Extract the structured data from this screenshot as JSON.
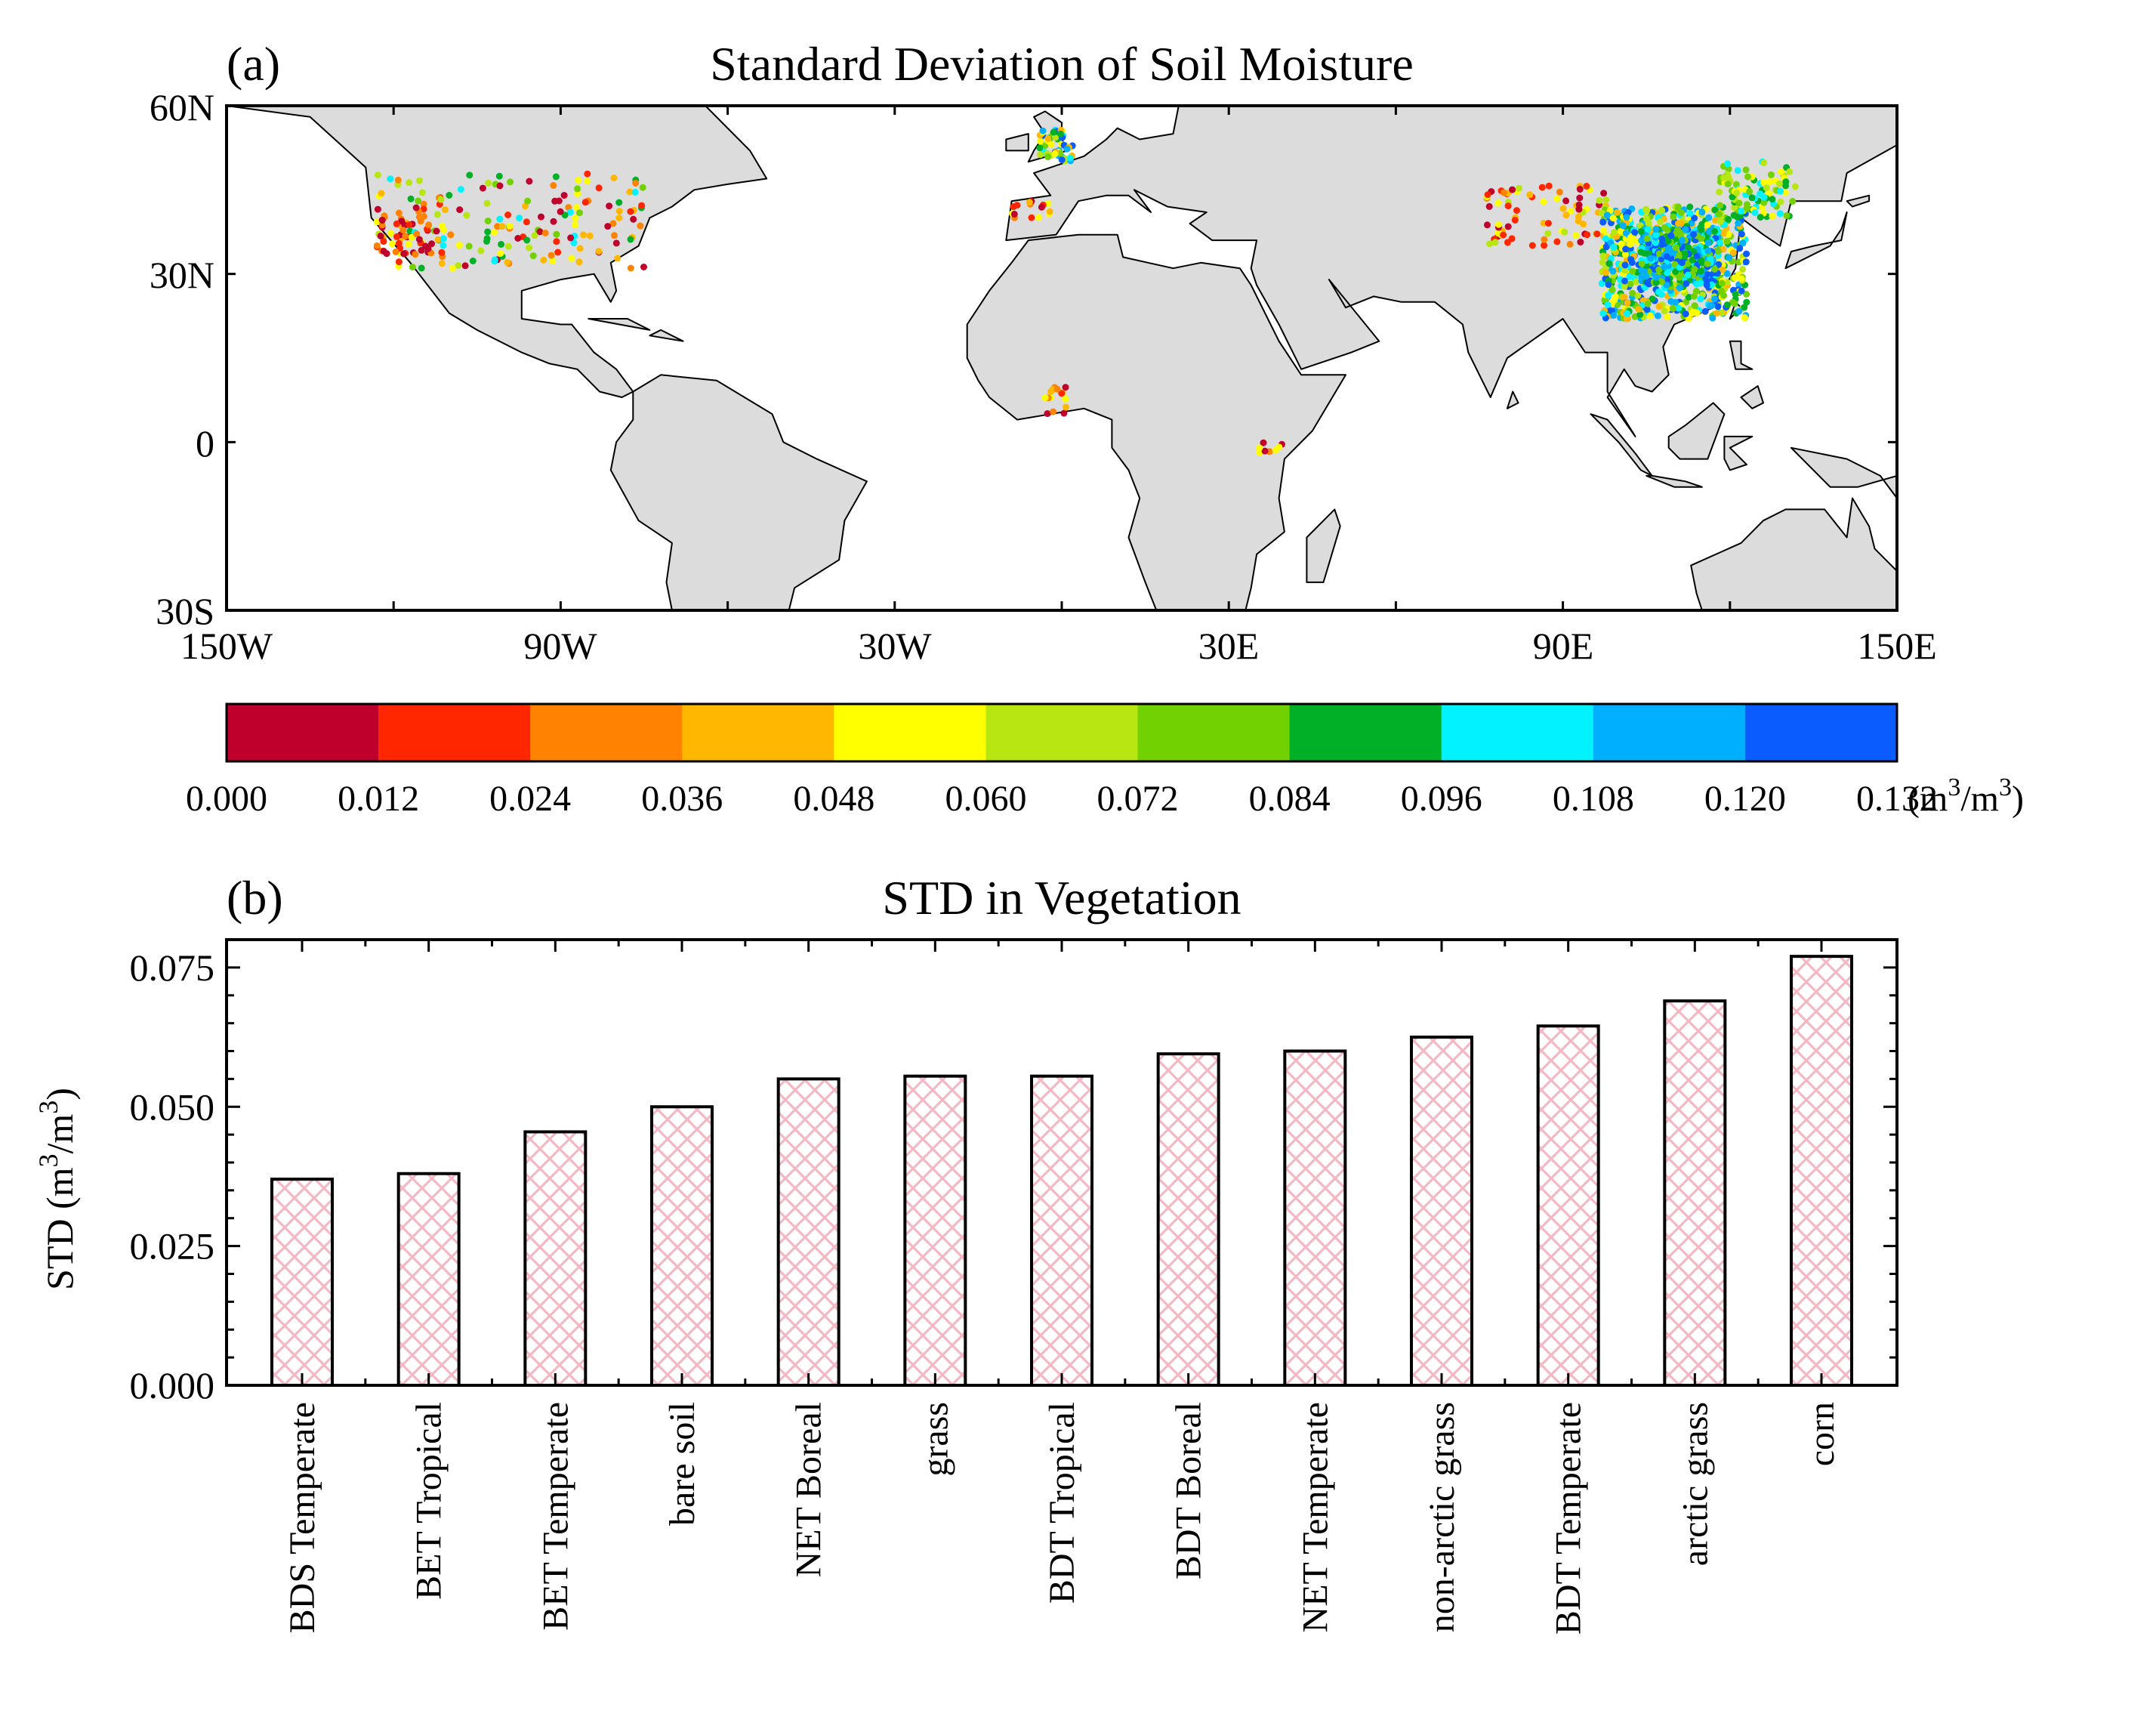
{
  "panel_a": {
    "letter": "(a)",
    "title": "Standard Deviation of Soil Moisture",
    "lat_ticks": [
      "60N",
      "30N",
      "0",
      "30S"
    ],
    "lon_ticks": [
      "150W",
      "90W",
      "30W",
      "30E",
      "90E",
      "150E"
    ],
    "land_color": "#dcdcdc"
  },
  "colorbar": {
    "ticks": [
      "0.000",
      "0.012",
      "0.024",
      "0.036",
      "0.048",
      "0.060",
      "0.072",
      "0.084",
      "0.096",
      "0.108",
      "0.120",
      "0.132"
    ],
    "unit_base": "(m",
    "unit_mid": "/m",
    "unit_end": ")",
    "unit_sup": "3",
    "colors": [
      "#c0002c",
      "#ff2600",
      "#ff8200",
      "#ffb700",
      "#ffff00",
      "#b8e612",
      "#72d100",
      "#00b026",
      "#00f3ff",
      "#00b0ff",
      "#0a5cff"
    ]
  },
  "panel_b": {
    "letter": "(b)",
    "ylabel_base": "STD (m",
    "ylabel_mid": "/m",
    "ylabel_end": ")",
    "ylabel_sup": "3",
    "bar_color": "#f4b8c4"
  },
  "chart_data": {
    "type": "bar",
    "title": "STD in Vegetation",
    "xlabel": "",
    "ylabel": "STD (m3/m3)",
    "categories": [
      "BDS Temperate",
      "BET Tropical",
      "BET Temperate",
      "bare soil",
      "NET Boreal",
      "grass",
      "BDT Tropical",
      "BDT Boreal",
      "NET Temperate",
      "non-arctic grass",
      "BDT Temperate",
      "arctic grass",
      "corn"
    ],
    "values": [
      0.037,
      0.038,
      0.0455,
      0.05,
      0.055,
      0.0555,
      0.0555,
      0.0595,
      0.06,
      0.0625,
      0.0645,
      0.069,
      0.077
    ],
    "ylim": [
      0,
      0.08
    ],
    "yticks": [
      "0.000",
      "0.025",
      "0.050",
      "0.075"
    ],
    "grid": false
  }
}
